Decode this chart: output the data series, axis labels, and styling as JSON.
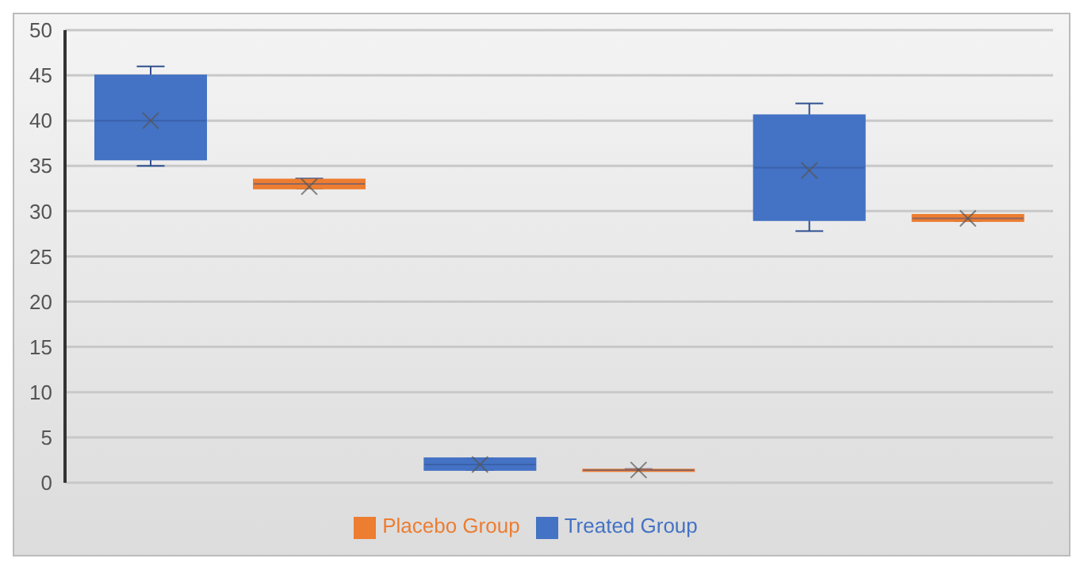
{
  "chart_data": {
    "type": "box",
    "categories": [
      null,
      null,
      null
    ],
    "ylim": [
      0,
      50
    ],
    "yticks": [
      0,
      5,
      10,
      15,
      20,
      25,
      30,
      35,
      40,
      45,
      50
    ],
    "grid": "y",
    "legend": "bottom",
    "series": [
      {
        "name": "Treated Group",
        "color": "#4472c4",
        "boxes": [
          {
            "low": 35,
            "q1": 35.7,
            "median": 40,
            "q3": 45,
            "high": 46,
            "mean": 40
          },
          {
            "low": 1.4,
            "q1": 1.4,
            "median": 2,
            "q3": 2.7,
            "high": 2.7,
            "mean": 2
          },
          {
            "low": 27.8,
            "q1": 29,
            "median": 34.8,
            "q3": 40.6,
            "high": 41.9,
            "mean": 34.5
          }
        ]
      },
      {
        "name": "Placebo Group",
        "color": "#ed7d31",
        "boxes": [
          {
            "low": 32.5,
            "q1": 32.5,
            "median": 33,
            "q3": 33.5,
            "high": 33.6,
            "mean": 32.7
          },
          {
            "low": 1.3,
            "q1": 1.35,
            "median": 1.4,
            "q3": 1.45,
            "high": 1.5,
            "mean": 1.4
          },
          {
            "low": 28.9,
            "q1": 28.9,
            "median": 29.2,
            "q3": 29.6,
            "high": 29.6,
            "mean": 29.2
          }
        ]
      }
    ]
  }
}
